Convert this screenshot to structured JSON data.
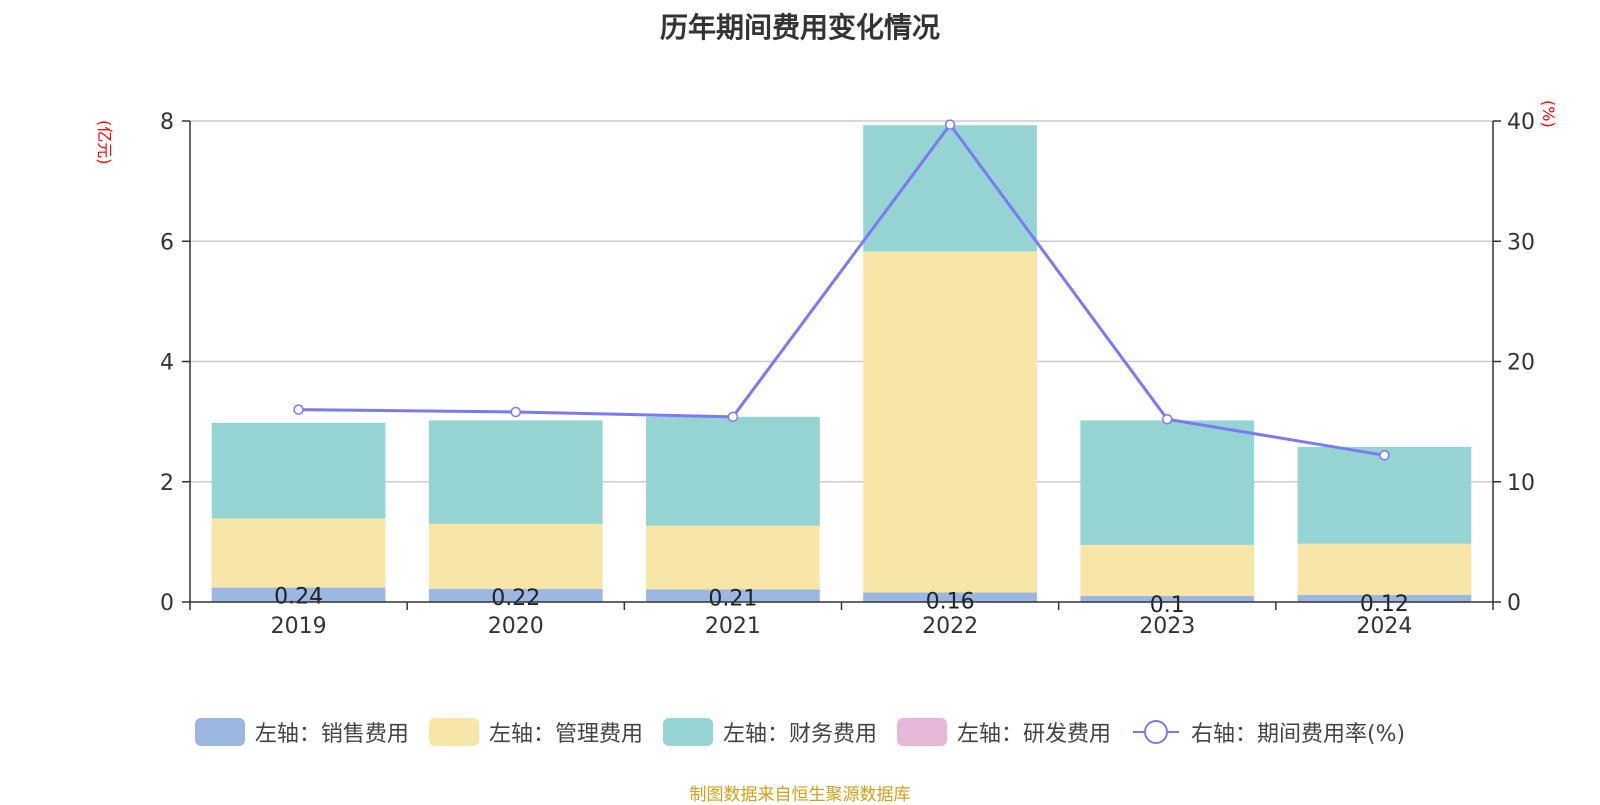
{
  "title": "历年期间费用变化情况",
  "left_unit": "(亿元)",
  "right_unit": "(%)",
  "source": "制图数据来自恒生聚源数据库",
  "legend": [
    {
      "label": "左轴：销售费用",
      "color": "#9bb7e2"
    },
    {
      "label": "左轴：管理费用",
      "color": "#f7e6a8"
    },
    {
      "label": "左轴：财务费用",
      "color": "#96d3d3"
    },
    {
      "label": "左轴：研发费用",
      "color": "#e8b8d8"
    },
    {
      "label": "右轴：期间费用率(%)",
      "color": "#7a7af2"
    }
  ],
  "chart_data": {
    "type": "bar",
    "categories": [
      "2019",
      "2020",
      "2021",
      "2022",
      "2023",
      "2024"
    ],
    "series": [
      {
        "name": "左轴：销售费用",
        "type": "bar",
        "axis": "left",
        "color": "#9bb7e2",
        "values": [
          0.24,
          0.22,
          0.21,
          0.16,
          0.1,
          0.12
        ],
        "labels": [
          "0.24",
          "0.22",
          "0.21",
          "0.16",
          "0.1",
          "0.12"
        ]
      },
      {
        "name": "左轴：管理费用",
        "type": "bar",
        "axis": "left",
        "color": "#f7e6a8",
        "values": [
          1.15,
          1.08,
          1.06,
          5.67,
          0.85,
          0.85
        ]
      },
      {
        "name": "左轴：财务费用",
        "type": "bar",
        "axis": "left",
        "color": "#96d3d3",
        "values": [
          1.59,
          1.72,
          1.81,
          2.1,
          2.07,
          1.61
        ]
      },
      {
        "name": "左轴：研发费用",
        "type": "bar",
        "axis": "left",
        "color": "#e8b8d8",
        "values": [
          0,
          0,
          0,
          0,
          0,
          0
        ]
      },
      {
        "name": "右轴：期间费用率(%)",
        "type": "line",
        "axis": "right",
        "color": "#7a7af2",
        "values": [
          16.0,
          15.8,
          15.4,
          39.7,
          15.2,
          12.2
        ]
      }
    ],
    "y_left": {
      "ylim": [
        0,
        8
      ],
      "ticks": [
        "0",
        "2",
        "4",
        "6",
        "8"
      ]
    },
    "y_right": {
      "ylim": [
        0,
        40
      ],
      "ticks": [
        "0",
        "10",
        "20",
        "30",
        "40"
      ]
    },
    "grid": true,
    "legend_position": "bottom"
  }
}
